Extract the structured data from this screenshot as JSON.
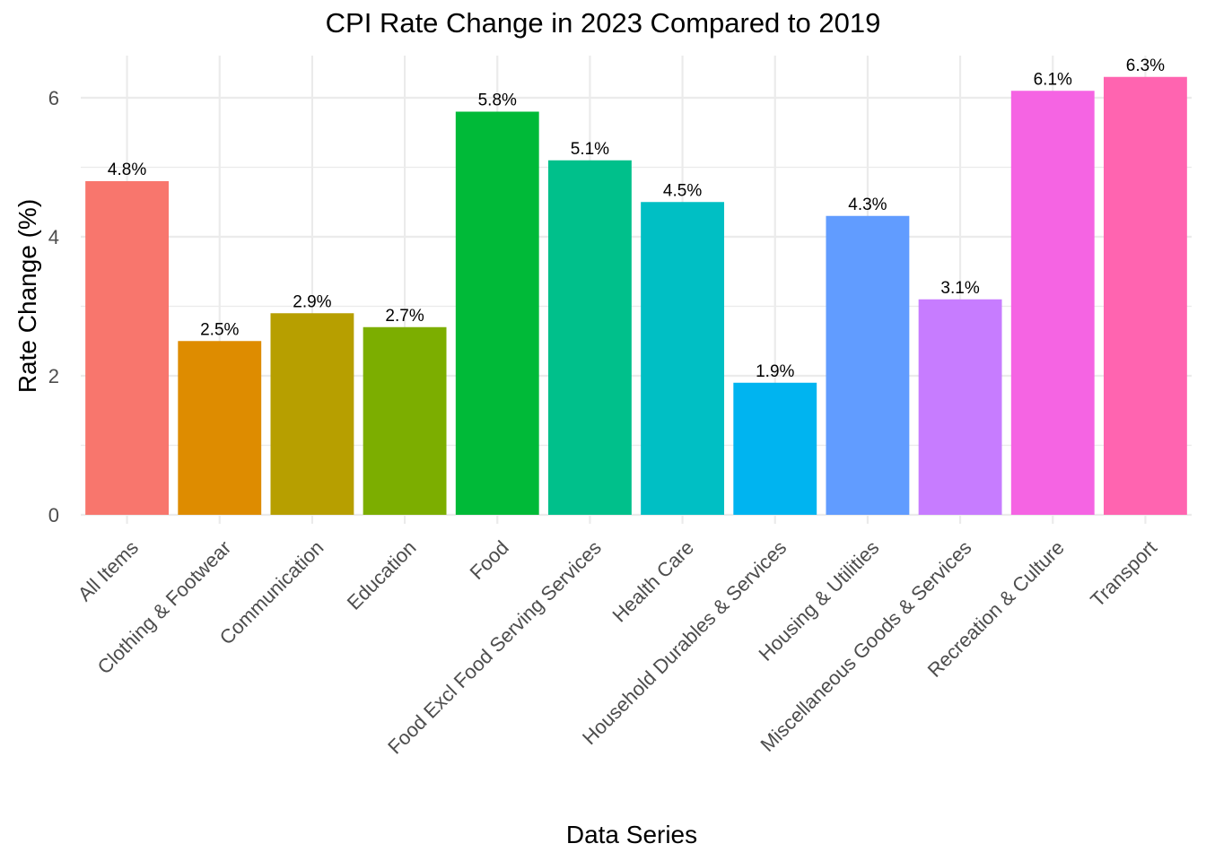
{
  "chart_data": {
    "type": "bar",
    "title": "CPI Rate Change in 2023 Compared to 2019",
    "xlabel": "Data Series",
    "ylabel": "Rate Change (%)",
    "ylim": [
      0,
      6.6
    ],
    "yticks": [
      0,
      2,
      4,
      6
    ],
    "grid": true,
    "legend": "none",
    "categories": [
      "All Items",
      "Clothing & Footwear",
      "Communication",
      "Education",
      "Food",
      "Food Excl Food Serving Services",
      "Health Care",
      "Household Durables & Services",
      "Housing & Utilities",
      "Miscellaneous Goods & Services",
      "Recreation & Culture",
      "Transport"
    ],
    "values": [
      4.8,
      2.5,
      2.9,
      2.7,
      5.8,
      5.1,
      4.5,
      1.9,
      4.3,
      3.1,
      6.1,
      6.3
    ],
    "data_labels": [
      "4.8%",
      "2.5%",
      "2.9%",
      "2.7%",
      "5.8%",
      "5.1%",
      "4.5%",
      "1.9%",
      "4.3%",
      "3.1%",
      "6.1%",
      "6.3%"
    ],
    "colors": [
      "#F8766D",
      "#DE8C00",
      "#B79F00",
      "#7CAE00",
      "#00BA38",
      "#00C08B",
      "#00BFC4",
      "#00B4F0",
      "#619CFF",
      "#C77CFF",
      "#F564E3",
      "#FF64B0"
    ]
  }
}
